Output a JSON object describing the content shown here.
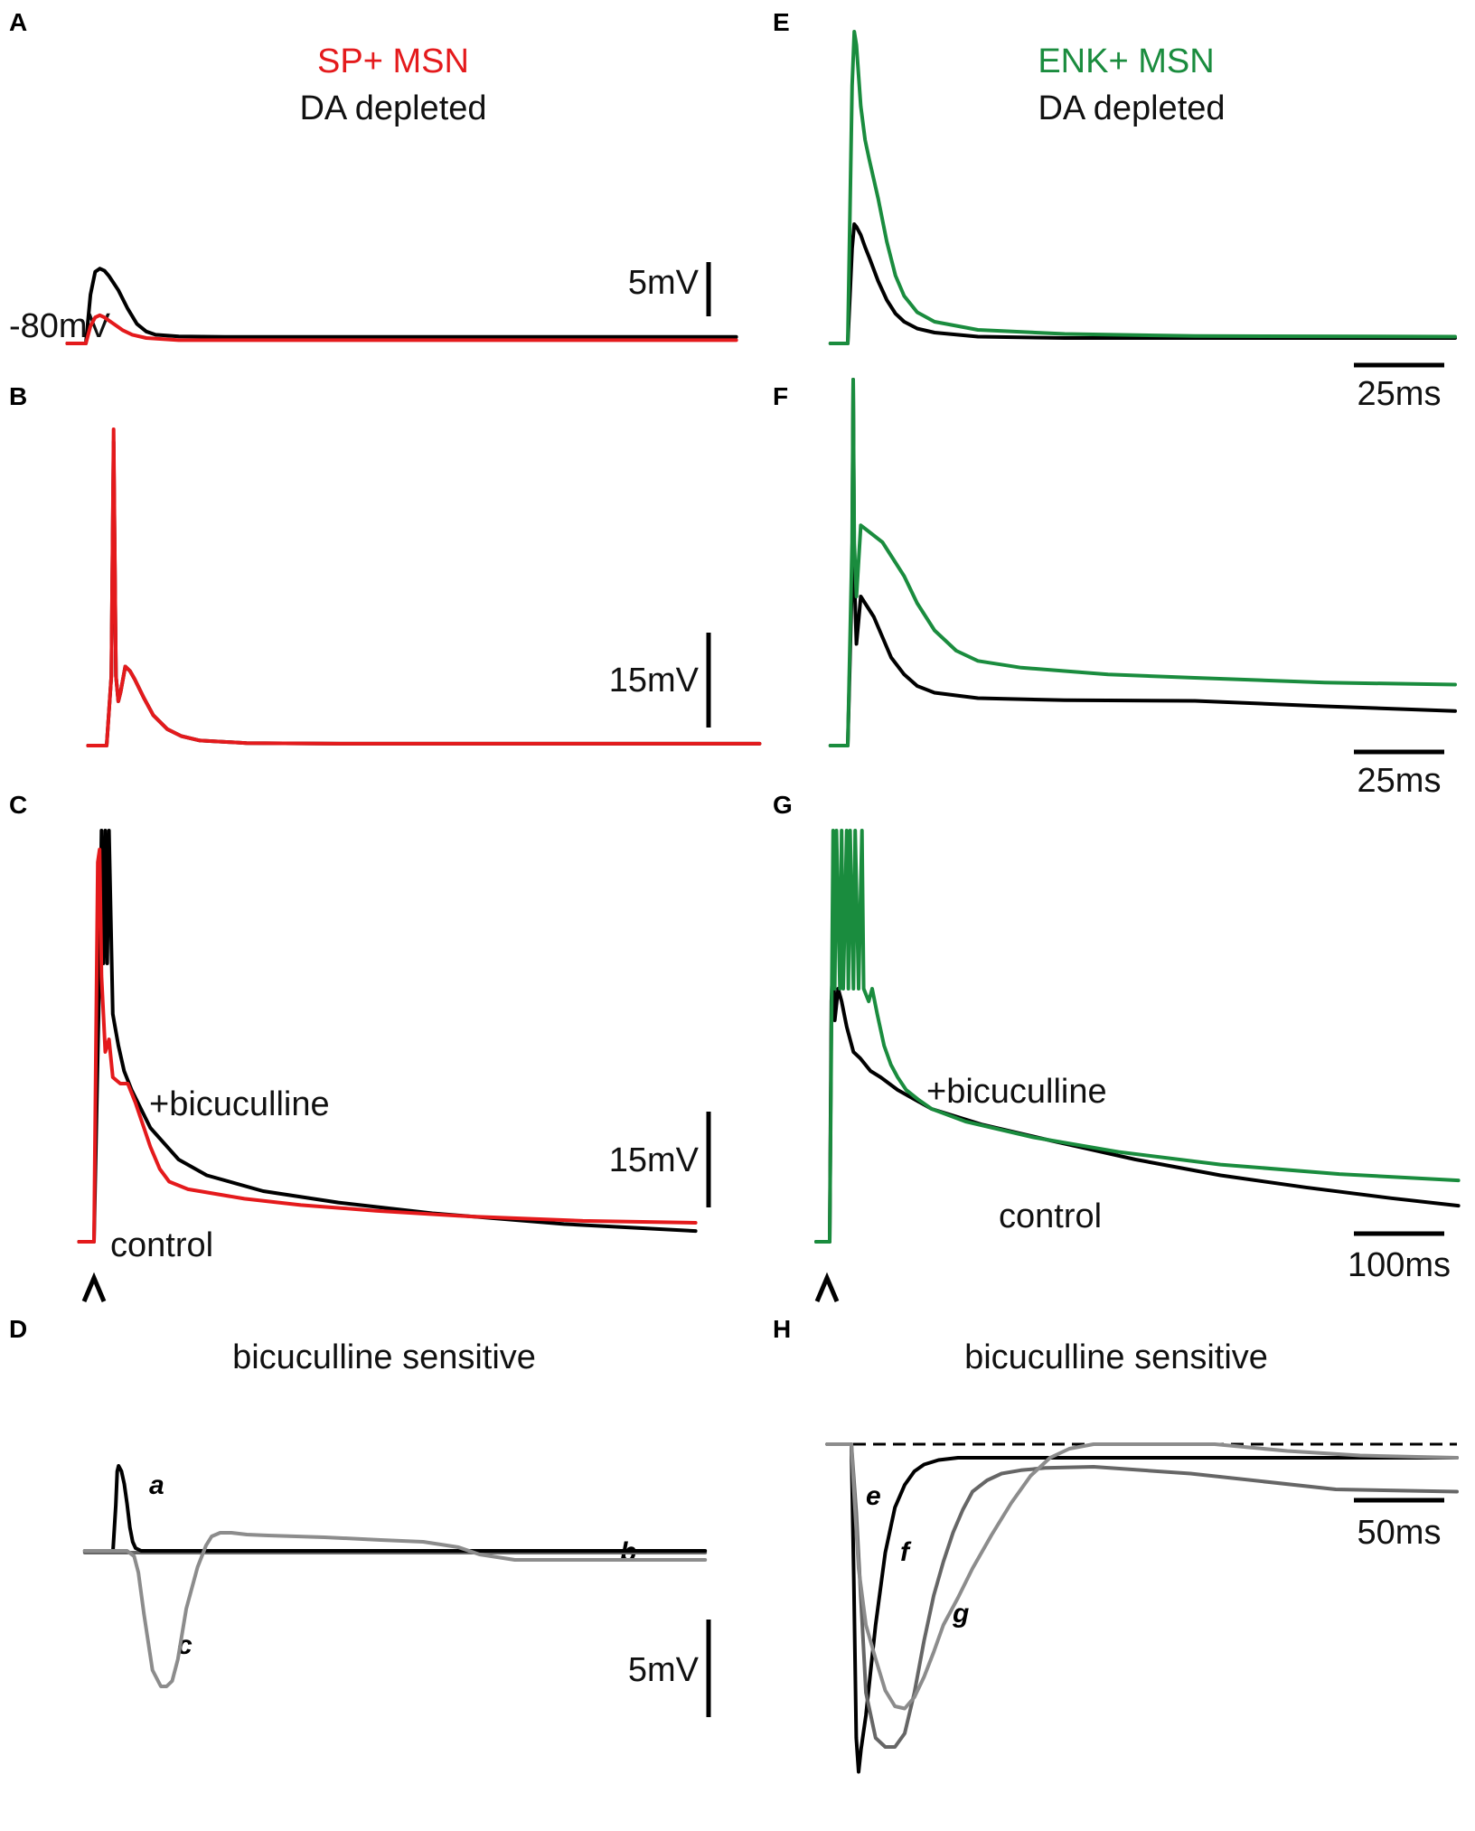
{
  "figure": {
    "left_title": "SP+ MSN",
    "right_title": "ENK+ MSN",
    "left_subtitle": "DA depleted",
    "right_subtitle": "DA depleted"
  },
  "colors": {
    "sp": "#e41a1c",
    "enk": "#1a8c3e",
    "control": "#000000",
    "trace_dark_gray": "#666666",
    "trace_light_gray": "#8c8c8c"
  },
  "chart_data": [
    {
      "panel": "A",
      "type": "line",
      "title": "SP+ MSN",
      "subtitle": "DA depleted",
      "baseline_label": "-80mV",
      "scale_bar": {
        "y_label": "5mV",
        "y_value": 5
      },
      "series": [
        {
          "x": [
            -8,
            0,
            2,
            4,
            6,
            8,
            10,
            14,
            18,
            22,
            26,
            30,
            40,
            60,
            100,
            160,
            280
          ],
          "values": [
            0,
            0,
            4.5,
            6.6,
            6.9,
            6.7,
            6.2,
            4.9,
            3.2,
            1.8,
            1.1,
            0.8,
            0.65,
            0.6,
            0.6,
            0.6,
            0.6
          ]
        },
        {
          "x": [
            -8,
            0,
            2,
            4,
            6,
            8,
            12,
            16,
            20,
            26,
            40,
            80,
            160,
            280
          ],
          "values": [
            0,
            0,
            1.6,
            2.4,
            2.6,
            2.4,
            1.8,
            1.2,
            0.8,
            0.5,
            0.3,
            0.3,
            0.3,
            0.3
          ]
        }
      ]
    },
    {
      "panel": "B",
      "type": "line",
      "scale_bar": {
        "y_label": "15mV",
        "y_value": 15
      },
      "series": [
        {
          "x": [
            -8,
            0,
            2,
            3,
            4,
            5,
            6,
            8,
            10,
            12,
            16,
            20,
            26,
            32,
            40,
            60,
            100,
            160,
            280
          ],
          "values": [
            0,
            0,
            11,
            48,
            11,
            7,
            8.5,
            12.5,
            11.8,
            10.5,
            7.5,
            4.8,
            2.6,
            1.5,
            0.8,
            0.4,
            0.3,
            0.3,
            0.3
          ]
        },
        {
          "x": [
            -8,
            0,
            2,
            3,
            4,
            5,
            6,
            8,
            10,
            12,
            16,
            20,
            26,
            32,
            40,
            60,
            100,
            160,
            280
          ],
          "values": [
            0,
            0,
            11,
            50,
            11,
            7,
            8.5,
            12.5,
            11.8,
            10.5,
            7.5,
            4.8,
            2.6,
            1.5,
            0.8,
            0.4,
            0.3,
            0.3,
            0.3
          ]
        }
      ]
    },
    {
      "panel": "C",
      "type": "line",
      "labels": {
        "drug": "+bicuculline",
        "control": "control"
      },
      "scale_bar": {
        "y_label": "15mV",
        "y_value": 15
      },
      "series": [
        {
          "x": [
            -8,
            0,
            3,
            4,
            5,
            6,
            7,
            8,
            10,
            13,
            16,
            20,
            30,
            45,
            60,
            90,
            130,
            180,
            250,
            320
          ],
          "values": [
            0,
            0,
            44,
            65,
            44,
            65,
            44,
            65,
            36,
            31,
            27,
            24,
            18,
            13,
            10.5,
            8,
            6.2,
            4.5,
            2.8,
            1.7
          ]
        },
        {
          "x": [
            -8,
            0,
            2,
            3,
            4,
            6,
            8,
            10,
            14,
            18,
            22,
            26,
            30,
            35,
            40,
            50,
            60,
            80,
            110,
            150,
            200,
            260,
            320
          ],
          "values": [
            0,
            0,
            60,
            62,
            42,
            30,
            32,
            26,
            25,
            25,
            22,
            18.5,
            15,
            11.5,
            9.5,
            8.3,
            7.8,
            6.8,
            5.8,
            4.9,
            4,
            3.3,
            3
          ]
        }
      ]
    },
    {
      "panel": "D",
      "type": "line",
      "title": "bicuculline sensitive",
      "scale_bar": {
        "y_label": "5mV",
        "y_value": 5
      },
      "series": [
        {
          "name": "a",
          "x": [
            -20,
            0,
            2,
            3,
            4,
            6,
            8,
            10,
            12,
            14,
            16,
            20,
            30,
            200,
            260,
            280,
            320,
            420
          ],
          "values": [
            0,
            0,
            2.5,
            4.4,
            4.7,
            4.4,
            3.7,
            2.6,
            1.3,
            0.5,
            0.15,
            0,
            0,
            0,
            0,
            0,
            0,
            0
          ]
        },
        {
          "name": "c",
          "x": [
            -20,
            0,
            10,
            15,
            18,
            22,
            28,
            34,
            38,
            42,
            46,
            52,
            60,
            66,
            70,
            76,
            84,
            95,
            110,
            150,
            190,
            220,
            245,
            260,
            285,
            320,
            420
          ],
          "values": [
            0,
            0,
            0,
            -0.3,
            -1.2,
            -3.5,
            -6.6,
            -7.5,
            -7.5,
            -7.2,
            -6,
            -3.2,
            -0.9,
            0.3,
            0.8,
            1,
            1,
            0.9,
            0.85,
            0.75,
            0.6,
            0.5,
            0.2,
            -0.2,
            -0.5,
            -0.5,
            -0.5
          ]
        }
      ],
      "annotations": [
        "a",
        "b",
        "c"
      ]
    },
    {
      "panel": "E",
      "type": "line",
      "title": "ENK+ MSN",
      "subtitle": "DA depleted",
      "scale_bar": {
        "x_label": "25ms",
        "x_value": 25
      },
      "series": [
        {
          "x": [
            -8,
            0,
            2,
            3,
            4,
            6,
            8,
            10,
            14,
            18,
            22,
            26,
            32,
            40,
            60,
            100,
            160,
            280
          ],
          "values": [
            0,
            0,
            7,
            8.8,
            8.6,
            8,
            7.1,
            6.3,
            4.6,
            3.2,
            2.2,
            1.6,
            1.1,
            0.8,
            0.5,
            0.4,
            0.4,
            0.4
          ]
        },
        {
          "x": [
            -8,
            0,
            2,
            3,
            4,
            6,
            8,
            10,
            14,
            18,
            22,
            26,
            32,
            40,
            60,
            100,
            160,
            280
          ],
          "values": [
            0,
            0,
            19,
            23,
            22,
            17.5,
            15,
            13.5,
            10.7,
            7.5,
            5,
            3.5,
            2.3,
            1.6,
            1,
            0.7,
            0.55,
            0.5
          ]
        }
      ]
    },
    {
      "panel": "F",
      "type": "line",
      "scale_bar": {
        "x_label": "25ms",
        "x_value": 25
      },
      "series": [
        {
          "x": [
            -8,
            0,
            2,
            2.5,
            3,
            4,
            6,
            8,
            12,
            16,
            20,
            26,
            32,
            40,
            60,
            100,
            160,
            220,
            280
          ],
          "values": [
            0,
            0,
            25,
            54,
            25,
            15,
            22,
            21,
            19,
            16,
            13,
            10.5,
            8.8,
            7.8,
            7,
            6.7,
            6.6,
            5.8,
            5.1
          ]
        },
        {
          "x": [
            -8,
            0,
            2,
            2.5,
            3,
            4,
            6,
            8,
            12,
            16,
            20,
            26,
            32,
            40,
            50,
            60,
            80,
            100,
            120,
            160,
            220,
            280
          ],
          "values": [
            0,
            0,
            30,
            54,
            30,
            22,
            32.5,
            32,
            31,
            30,
            28,
            25,
            21,
            17,
            14,
            12.5,
            11.5,
            11,
            10.5,
            10,
            9.3,
            9
          ]
        }
      ]
    },
    {
      "panel": "G",
      "type": "line",
      "labels": {
        "drug": "+bicuculline",
        "control": "control"
      },
      "scale_bar": {
        "x_label": "100ms",
        "x_value": 100
      },
      "series": [
        {
          "x": [
            -8,
            0,
            1,
            2,
            3,
            5,
            7,
            10,
            14,
            18,
            24,
            30,
            40,
            60,
            90,
            130,
            180,
            230,
            280,
            330,
            370
          ],
          "values": [
            0,
            0,
            38,
            46,
            35,
            40,
            38,
            34,
            30,
            29,
            27,
            26,
            24,
            21,
            18.5,
            16,
            13,
            10.5,
            8.6,
            6.9,
            5.7
          ]
        },
        {
          "x": [
            -8,
            0,
            2,
            3,
            4,
            6,
            7,
            8,
            10,
            11,
            12,
            14,
            15,
            17,
            19,
            20,
            23,
            25,
            28,
            32,
            36,
            40,
            45,
            52,
            60,
            80,
            120,
            170,
            230,
            300,
            370
          ],
          "values": [
            0,
            0,
            65,
            40,
            65,
            40,
            65,
            40,
            65,
            40,
            65,
            40,
            65,
            40,
            65,
            40,
            38,
            40,
            36,
            31,
            28,
            26,
            24,
            22.5,
            21,
            19,
            16.5,
            14.2,
            12.2,
            10.7,
            9.7
          ]
        }
      ]
    },
    {
      "panel": "H",
      "type": "line",
      "title": "bicuculline sensitive",
      "scale_bar": {
        "x_label": "50ms",
        "x_value": 50
      },
      "series": [
        {
          "name": "e",
          "x": [
            -10,
            0,
            1,
            2,
            3,
            4,
            6,
            8,
            10,
            14,
            18,
            22,
            26,
            30,
            36,
            44,
            55,
            80,
            140,
            200,
            250
          ],
          "values": [
            0,
            0,
            -6,
            -13,
            -14.5,
            -13.5,
            -12,
            -10,
            -8,
            -4.8,
            -2.8,
            -1.8,
            -1.2,
            -0.9,
            -0.7,
            -0.6,
            -0.6,
            -0.6,
            -0.6,
            -0.6,
            -0.6
          ]
        },
        {
          "name": "f",
          "x": [
            -10,
            0,
            2,
            6,
            10,
            14,
            18,
            22,
            26,
            30,
            34,
            38,
            42,
            46,
            50,
            56,
            62,
            70,
            80,
            100,
            140,
            200,
            250
          ],
          "values": [
            0,
            0,
            -3,
            -11,
            -13,
            -13.4,
            -13.4,
            -12.8,
            -11,
            -8.7,
            -6.7,
            -5.2,
            -3.9,
            -2.9,
            -2.1,
            -1.6,
            -1.3,
            -1.15,
            -1.05,
            -1,
            -1.3,
            -2,
            -2.1
          ]
        },
        {
          "name": "g",
          "x": [
            -10,
            0,
            1,
            3,
            6,
            10,
            14,
            18,
            22,
            26,
            30,
            34,
            38,
            44,
            50,
            58,
            66,
            74,
            82,
            90,
            100,
            120,
            150,
            180,
            210,
            250
          ],
          "values": [
            0,
            0,
            -2,
            -5.5,
            -8,
            -9.5,
            -10.9,
            -11.6,
            -11.7,
            -11.2,
            -10.3,
            -9.2,
            -8,
            -6.8,
            -5.5,
            -4,
            -2.6,
            -1.4,
            -0.6,
            -0.2,
            0,
            0,
            0,
            -0.3,
            -0.5,
            -0.6
          ]
        }
      ],
      "annotations": [
        "e",
        "f",
        "g"
      ]
    }
  ]
}
